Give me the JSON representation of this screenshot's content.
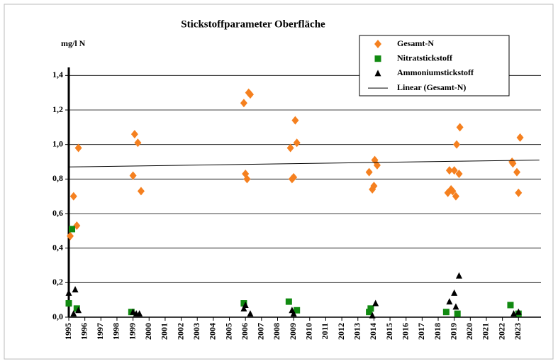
{
  "chart_data": {
    "type": "scatter",
    "title": "Stickstoffparameter Oberfläche",
    "y_axis_label": "mg/l N",
    "xlim": [
      1995,
      2024.4
    ],
    "xticks": [
      1995,
      1996,
      1997,
      1998,
      1999,
      2000,
      2001,
      2002,
      2003,
      2004,
      2005,
      2006,
      2007,
      2008,
      2009,
      2010,
      2011,
      2012,
      2013,
      2014,
      2015,
      2016,
      2017,
      2018,
      2019,
      2020,
      2021,
      2022,
      2023
    ],
    "ylim": [
      0,
      1.5
    ],
    "yticks": [
      {
        "value": 0,
        "label": "0,0"
      },
      {
        "value": 0.2,
        "label": "0,2"
      },
      {
        "value": 0.4,
        "label": "0,4"
      },
      {
        "value": 0.6,
        "label": "0,6"
      },
      {
        "value": 0.8,
        "label": "0,8"
      },
      {
        "value": 1.0,
        "label": "1,0"
      },
      {
        "value": 1.2,
        "label": "1,2"
      },
      {
        "value": 1.4,
        "label": "1,4"
      }
    ],
    "grid": true,
    "legend": "upper right",
    "series": [
      {
        "name": "Gesamt-N",
        "color": "#f5801f",
        "marker": "diamond",
        "x": [
          1995.09,
          1995.3,
          1995.5,
          1995.6,
          1999.0,
          1999.1,
          1999.3,
          1999.5,
          2005.9,
          2006.2,
          2006.3,
          2006.0,
          2006.1,
          2008.8,
          2008.9,
          2009.0,
          2009.1,
          2009.2,
          2013.7,
          2013.9,
          2014.0,
          2014.05,
          2014.2,
          2018.6,
          2018.7,
          2018.9,
          2018.8,
          2019.0,
          2019.1,
          2019.15,
          2019.3,
          2019.35,
          2022.6,
          2022.65,
          2022.9,
          2023.0,
          2023.1
        ],
        "values": [
          0.47,
          0.7,
          0.53,
          0.98,
          0.82,
          1.06,
          1.01,
          0.73,
          1.24,
          1.3,
          1.29,
          0.83,
          0.8,
          0.98,
          0.8,
          0.81,
          1.14,
          1.01,
          0.84,
          0.74,
          0.76,
          0.91,
          0.88,
          0.72,
          0.85,
          0.73,
          0.74,
          0.85,
          0.7,
          1.0,
          0.83,
          1.1,
          0.9,
          0.89,
          0.84,
          0.72,
          1.04
        ]
      },
      {
        "name": "Nitratstickstoff",
        "color": "#118a11",
        "marker": "square",
        "x": [
          1995.0,
          1995.2,
          1995.5,
          1998.9,
          2005.9,
          2008.7,
          2009.2,
          2013.7,
          2013.8,
          2018.5,
          2019.2,
          2022.5,
          2023.0
        ],
        "values": [
          0.08,
          0.51,
          0.05,
          0.03,
          0.08,
          0.09,
          0.04,
          0.03,
          0.05,
          0.03,
          0.02,
          0.07,
          0.02
        ]
      },
      {
        "name": "Ammoniumstickstoff",
        "color": "#000000",
        "marker": "triangle",
        "x": [
          1995.0,
          1995.4,
          1995.6,
          1995.3,
          1999.0,
          1999.2,
          1999.4,
          2005.9,
          2006.0,
          2006.3,
          2008.9,
          2009.0,
          2014.1,
          2013.9,
          2018.7,
          2019.0,
          2019.1,
          2019.3,
          2022.7,
          2023.0
        ],
        "values": [
          0.14,
          0.16,
          0.04,
          0.02,
          0.03,
          0.02,
          0.02,
          0.05,
          0.07,
          0.02,
          0.04,
          0.02,
          0.08,
          0.01,
          0.09,
          0.14,
          0.06,
          0.24,
          0.02,
          0.03
        ]
      },
      {
        "name": "Linear (Gesamt-N)",
        "color": "#000000",
        "marker": "line",
        "x": [
          1995,
          2024.3
        ],
        "values": [
          0.87,
          0.91
        ]
      }
    ]
  }
}
